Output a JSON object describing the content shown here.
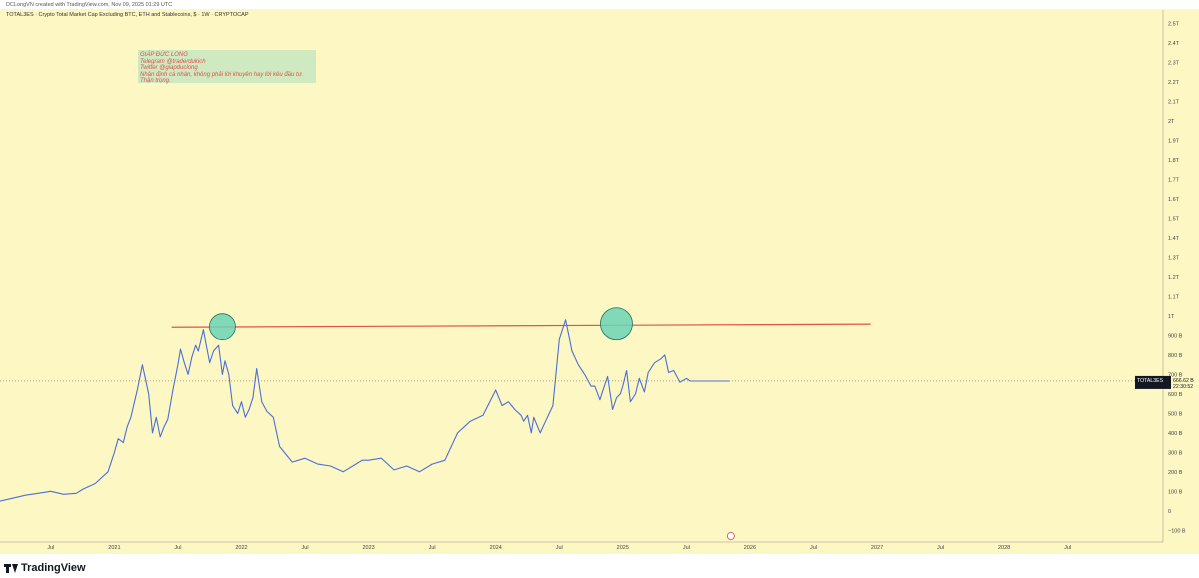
{
  "header": {
    "credit": "DCLongVN created with TradingView.com, Nov 09, 2025 01:29 UTC",
    "symbol_line": "TOTAL3ES · Crypto Total Market Cap Excluding BTC, ETH and Stablecoins, $ · 1W · CRYPTOCAP"
  },
  "note": {
    "lines": [
      "GIÁP ĐỨC LONG",
      "Telegram @traderdukich",
      "Twitter @giapduclong",
      "Nhận định cá nhân, không phải lời khuyên hay lời kêu đầu tư.",
      "Thận trọng."
    ]
  },
  "price_tag": {
    "symbol": "TOTAL3ES",
    "value": "666.62 B",
    "countdown": "22:30:52"
  },
  "footer": {
    "brand": "TradingView"
  },
  "colors": {
    "background": "#fdf7c3",
    "line": "#4a6fd8",
    "resistance": "#e0524d",
    "circle": "#6cd3b6",
    "note_bg": "#cfe9c0"
  },
  "chart_data": {
    "type": "line",
    "y_unit": "USD",
    "y_ticks": [
      {
        "v": -100,
        "label": "−100 B"
      },
      {
        "v": 0,
        "label": "0"
      },
      {
        "v": 100,
        "label": "100 B"
      },
      {
        "v": 200,
        "label": "200 B"
      },
      {
        "v": 300,
        "label": "300 B"
      },
      {
        "v": 400,
        "label": "400 B"
      },
      {
        "v": 500,
        "label": "500 B"
      },
      {
        "v": 600,
        "label": "600 B"
      },
      {
        "v": 700,
        "label": "700 B"
      },
      {
        "v": 800,
        "label": "800 B"
      },
      {
        "v": 900,
        "label": "900 B"
      },
      {
        "v": 1000,
        "label": "1T"
      },
      {
        "v": 1100,
        "label": "1.1T"
      },
      {
        "v": 1200,
        "label": "1.2T"
      },
      {
        "v": 1300,
        "label": "1.3T"
      },
      {
        "v": 1400,
        "label": "1.4T"
      },
      {
        "v": 1500,
        "label": "1.5T"
      },
      {
        "v": 1600,
        "label": "1.6T"
      },
      {
        "v": 1700,
        "label": "1.7T"
      },
      {
        "v": 1800,
        "label": "1.8T"
      },
      {
        "v": 1900,
        "label": "1.9T"
      },
      {
        "v": 2000,
        "label": "2T"
      },
      {
        "v": 2100,
        "label": "2.1T"
      },
      {
        "v": 2200,
        "label": "2.2T"
      },
      {
        "v": 2300,
        "label": "2.3T"
      },
      {
        "v": 2400,
        "label": "2.4T"
      },
      {
        "v": 2500,
        "label": "2.5T"
      }
    ],
    "x_ticks": [
      {
        "t": 2020.5,
        "label": "Jul"
      },
      {
        "t": 2021.0,
        "label": "2021"
      },
      {
        "t": 2021.5,
        "label": "Jul"
      },
      {
        "t": 2022.0,
        "label": "2022"
      },
      {
        "t": 2022.5,
        "label": "Jul"
      },
      {
        "t": 2023.0,
        "label": "2023"
      },
      {
        "t": 2023.5,
        "label": "Jul"
      },
      {
        "t": 2024.0,
        "label": "2024"
      },
      {
        "t": 2024.5,
        "label": "Jul"
      },
      {
        "t": 2025.0,
        "label": "2025"
      },
      {
        "t": 2025.5,
        "label": "Jul"
      },
      {
        "t": 2026.0,
        "label": "2026"
      },
      {
        "t": 2026.5,
        "label": "Jul"
      },
      {
        "t": 2027.0,
        "label": "2027"
      },
      {
        "t": 2027.5,
        "label": "Jul"
      },
      {
        "t": 2028.0,
        "label": "2028"
      },
      {
        "t": 2028.5,
        "label": "Jul"
      }
    ],
    "xlim": [
      2020.1,
      2029.25
    ],
    "ylim": [
      -160,
      2570
    ],
    "series": [
      {
        "values_x": [
          2020.1,
          2020.2,
          2020.3,
          2020.4,
          2020.5,
          2020.6,
          2020.7,
          2020.75,
          2020.85,
          2020.95,
          2021.0,
          2021.03,
          2021.07,
          2021.1,
          2021.13,
          2021.18,
          2021.22,
          2021.27,
          2021.3,
          2021.33,
          2021.36,
          2021.39,
          2021.42,
          2021.46,
          2021.5,
          2021.52,
          2021.55,
          2021.58,
          2021.61,
          2021.64,
          2021.66,
          2021.7,
          2021.72,
          2021.75,
          2021.78,
          2021.82,
          2021.85,
          2021.87,
          2021.9,
          2021.93,
          2021.97,
          2022.0,
          2022.03,
          2022.06,
          2022.09,
          2022.12,
          2022.16,
          2022.2,
          2022.25,
          2022.3,
          2022.4,
          2022.5,
          2022.6,
          2022.7,
          2022.8,
          2022.9,
          2022.95,
          2023.0,
          2023.1,
          2023.2,
          2023.3,
          2023.4,
          2023.5,
          2023.6,
          2023.7,
          2023.8,
          2023.9,
          2024.0,
          2024.05,
          2024.1,
          2024.15,
          2024.2,
          2024.22,
          2024.25,
          2024.28,
          2024.3,
          2024.35,
          2024.4,
          2024.45,
          2024.5,
          2024.55,
          2024.6,
          2024.65,
          2024.7,
          2024.75,
          2024.78,
          2024.82,
          2024.85,
          2024.88,
          2024.92,
          2024.95,
          2024.98,
          2025.0,
          2025.03,
          2025.06,
          2025.1,
          2025.13,
          2025.17,
          2025.2,
          2025.25,
          2025.3,
          2025.33,
          2025.36,
          2025.4,
          2025.45,
          2025.5,
          2025.53,
          2025.57,
          2025.6,
          2025.63,
          2025.66,
          2025.7,
          2025.73,
          2025.76,
          2025.8,
          2025.84
        ],
        "values_y": [
          50,
          65,
          80,
          90,
          100,
          85,
          90,
          110,
          140,
          200,
          300,
          370,
          350,
          430,
          480,
          620,
          750,
          600,
          400,
          480,
          380,
          430,
          470,
          620,
          750,
          830,
          760,
          700,
          790,
          850,
          820,
          930,
          860,
          760,
          820,
          850,
          700,
          770,
          700,
          540,
          500,
          560,
          480,
          520,
          580,
          730,
          560,
          510,
          480,
          330,
          250,
          270,
          240,
          230,
          200,
          240,
          260,
          260,
          270,
          210,
          230,
          200,
          240,
          260,
          400,
          460,
          490,
          620,
          540,
          560,
          520,
          490,
          460,
          490,
          400,
          480,
          400,
          470,
          540,
          880,
          980,
          820,
          750,
          700,
          640,
          640,
          570,
          630,
          690,
          520,
          580,
          600,
          640,
          720,
          560,
          600,
          680,
          610,
          710,
          760,
          780,
          800,
          710,
          720,
          660,
          680,
          666,
          666,
          666,
          666,
          666,
          666,
          666,
          666,
          666,
          666
        ]
      }
    ],
    "resistance": {
      "t_start": 2021.45,
      "t_end": 2026.95,
      "v_start": 942,
      "v_end": 958
    },
    "highlight_circles": [
      {
        "t": 2021.85,
        "v": 945
      },
      {
        "t": 2024.95,
        "v": 960
      }
    ],
    "last_value": 666.62
  }
}
